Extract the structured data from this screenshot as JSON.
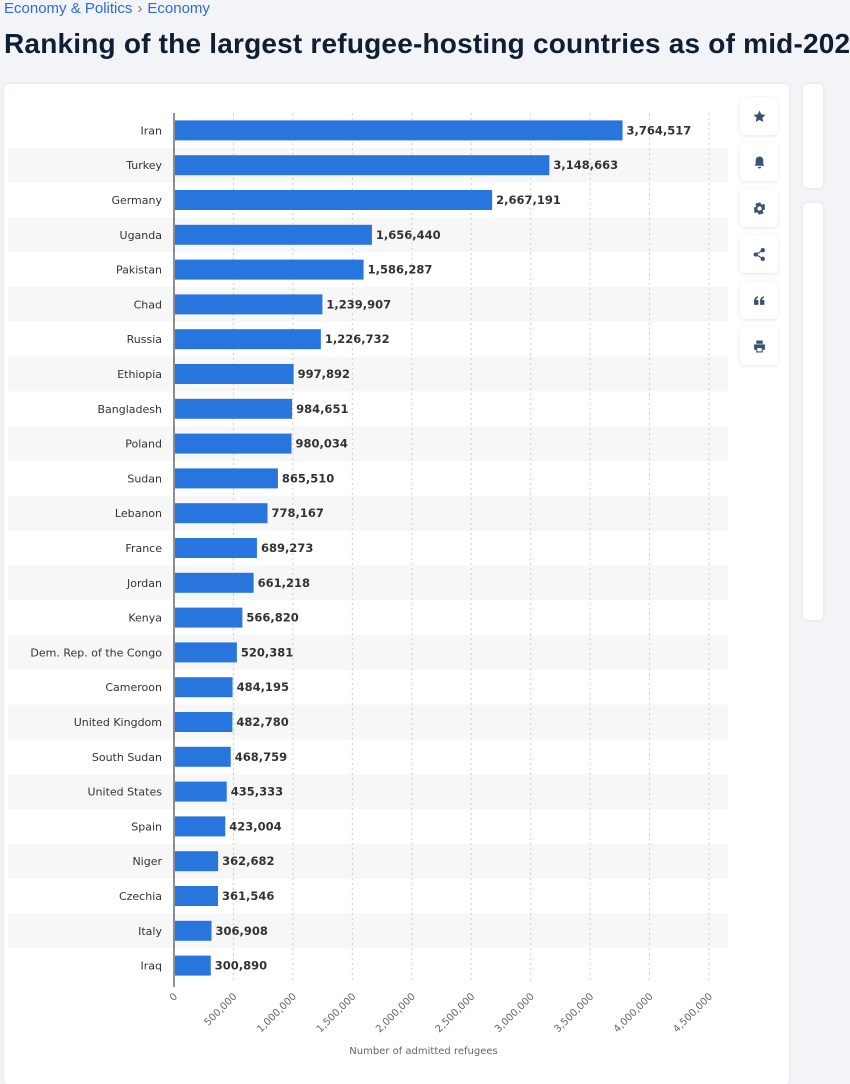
{
  "breadcrumb": {
    "items": [
      "Economy & Politics",
      "Economy"
    ],
    "separator": "›"
  },
  "page_title": "Ranking of the largest refugee-hosting countries as of mid-202",
  "toolbar": {
    "icons": [
      "star-icon",
      "bell-icon",
      "gear-icon",
      "share-icon",
      "quote-icon",
      "print-icon"
    ]
  },
  "colors": {
    "bar": "#2876dd",
    "stripe": "#f7f7f7"
  },
  "chart_data": {
    "type": "bar",
    "orientation": "horizontal",
    "categories": [
      "Iran",
      "Turkey",
      "Germany",
      "Uganda",
      "Pakistan",
      "Chad",
      "Russia",
      "Ethiopia",
      "Bangladesh",
      "Poland",
      "Sudan",
      "Lebanon",
      "France",
      "Jordan",
      "Kenya",
      "Dem. Rep. of the Congo",
      "Cameroon",
      "United Kingdom",
      "South Sudan",
      "United States",
      "Spain",
      "Niger",
      "Czechia",
      "Italy",
      "Iraq"
    ],
    "values": [
      3764517,
      3148663,
      2667191,
      1656440,
      1586287,
      1239907,
      1226732,
      997892,
      984651,
      980034,
      865510,
      778167,
      689273,
      661218,
      566820,
      520381,
      484195,
      482780,
      468759,
      435333,
      423004,
      362682,
      361546,
      306908,
      300890
    ],
    "value_labels": [
      "3,764,517",
      "3,148,663",
      "2,667,191",
      "1,656,440",
      "1,586,287",
      "1,239,907",
      "1,226,732",
      "997,892",
      "984,651",
      "980,034",
      "865,510",
      "778,167",
      "689,273",
      "661,218",
      "566,820",
      "520,381",
      "484,195",
      "482,780",
      "468,759",
      "435,333",
      "423,004",
      "362,682",
      "361,546",
      "306,908",
      "300,890"
    ],
    "xlabel": "Number of admitted refugees",
    "xlim": [
      0,
      4500000
    ],
    "xticks": [
      0,
      500000,
      1000000,
      1500000,
      2000000,
      2500000,
      3000000,
      3500000,
      4000000,
      4500000
    ],
    "xtick_labels": [
      "0",
      "500,000",
      "1,000,000",
      "1,500,000",
      "2,000,000",
      "2,500,000",
      "3,000,000",
      "3,500,000",
      "4,000,000",
      "4,500,000"
    ],
    "grid": true
  }
}
